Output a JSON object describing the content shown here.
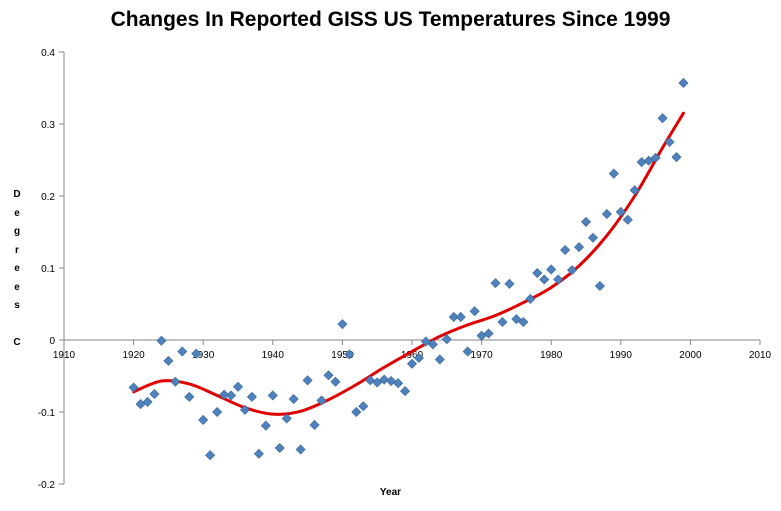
{
  "chart_data": {
    "type": "scatter",
    "title": "Changes In Reported GISS US Temperatures Since 1999",
    "xlabel": "Year",
    "ylabel": "Degrees C",
    "xlim": [
      1910,
      2010
    ],
    "ylim": [
      -0.2,
      0.4
    ],
    "xticks": [
      1910,
      1920,
      1930,
      1940,
      1950,
      1960,
      1970,
      1980,
      1990,
      2000,
      2010
    ],
    "yticks": [
      -0.2,
      -0.1,
      0,
      0.1,
      0.2,
      0.3,
      0.4
    ],
    "ytick_labels": [
      "-0.2",
      "-0.1",
      "0",
      "0.1",
      "0.2",
      "0.3",
      "0.4"
    ],
    "grid": false,
    "legend": "none",
    "series": [
      {
        "marker": "diamond",
        "color": "#4F81BD",
        "x": [
          1920,
          1921,
          1922,
          1923,
          1924,
          1925,
          1926,
          1927,
          1928,
          1929,
          1930,
          1931,
          1932,
          1933,
          1934,
          1935,
          1936,
          1937,
          1938,
          1939,
          1940,
          1941,
          1942,
          1943,
          1944,
          1945,
          1946,
          1947,
          1948,
          1949,
          1950,
          1951,
          1952,
          1953,
          1954,
          1955,
          1956,
          1957,
          1958,
          1959,
          1960,
          1961,
          1962,
          1963,
          1964,
          1965,
          1966,
          1967,
          1968,
          1969,
          1970,
          1971,
          1972,
          1973,
          1974,
          1975,
          1976,
          1977,
          1978,
          1979,
          1980,
          1981,
          1982,
          1983,
          1984,
          1985,
          1986,
          1987,
          1988,
          1989,
          1990,
          1991,
          1992,
          1993,
          1994,
          1995,
          1996,
          1997,
          1998,
          1999
        ],
        "y": [
          -0.066,
          -0.089,
          -0.086,
          -0.075,
          -0.001,
          -0.029,
          -0.058,
          -0.016,
          -0.079,
          -0.019,
          -0.111,
          -0.16,
          -0.1,
          -0.076,
          -0.077,
          -0.065,
          -0.097,
          -0.079,
          -0.158,
          -0.119,
          -0.077,
          -0.15,
          -0.109,
          -0.082,
          -0.152,
          -0.056,
          -0.118,
          -0.084,
          -0.049,
          -0.058,
          0.022,
          -0.02,
          -0.1,
          -0.092,
          -0.056,
          -0.059,
          -0.055,
          -0.057,
          -0.06,
          -0.071,
          -0.033,
          -0.025,
          -0.002,
          -0.006,
          -0.027,
          0.001,
          0.032,
          0.032,
          -0.016,
          0.04,
          0.006,
          0.009,
          0.079,
          0.025,
          0.078,
          0.029,
          0.025,
          0.057,
          0.093,
          0.084,
          0.098,
          0.084,
          0.125,
          0.097,
          0.129,
          0.164,
          0.142,
          0.075,
          0.175,
          0.231,
          0.178,
          0.167,
          0.208,
          0.247,
          0.249,
          0.253,
          0.308,
          0.275,
          0.254,
          0.357
        ]
      },
      {
        "type": "line",
        "color": "#E00000",
        "style": "trendline",
        "x": [
          1920,
          1924,
          1928,
          1932,
          1936,
          1940,
          1944,
          1948,
          1952,
          1956,
          1960,
          1964,
          1968,
          1972,
          1976,
          1980,
          1984,
          1988,
          1992,
          1996,
          1999
        ],
        "y": [
          -0.072,
          -0.057,
          -0.061,
          -0.077,
          -0.094,
          -0.103,
          -0.099,
          -0.083,
          -0.062,
          -0.038,
          -0.016,
          0.005,
          0.021,
          0.034,
          0.052,
          0.073,
          0.103,
          0.145,
          0.2,
          0.267,
          0.315
        ]
      }
    ]
  }
}
